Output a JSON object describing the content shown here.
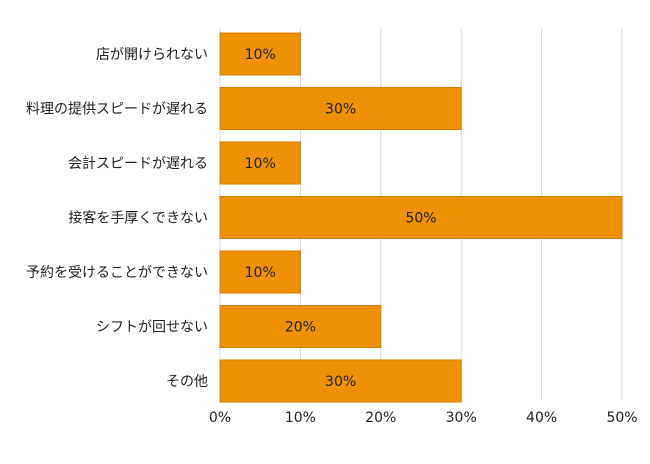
{
  "chart_data": {
    "type": "bar",
    "orientation": "horizontal",
    "categories": [
      "店が開けられない",
      "料理の提供スピードが遅れる",
      "会計スピードが遅れる",
      "接客を手厚くできない",
      "予約を受けることができない",
      "シフトが回せない",
      "その他"
    ],
    "values": [
      10,
      30,
      10,
      50,
      10,
      20,
      30
    ],
    "value_labels": [
      "10%",
      "30%",
      "10%",
      "50%",
      "10%",
      "20%",
      "30%"
    ],
    "x_ticks": [
      0,
      10,
      20,
      30,
      40,
      50
    ],
    "x_tick_labels": [
      "0%",
      "10%",
      "20%",
      "30%",
      "40%",
      "50%"
    ],
    "xlim": [
      0,
      50
    ],
    "grid": true,
    "legend": "none",
    "colors": {
      "bar": "#ef9106",
      "bar_stroke": "#d47f00",
      "grid": "#d9d9d9",
      "text": "#222222"
    }
  }
}
